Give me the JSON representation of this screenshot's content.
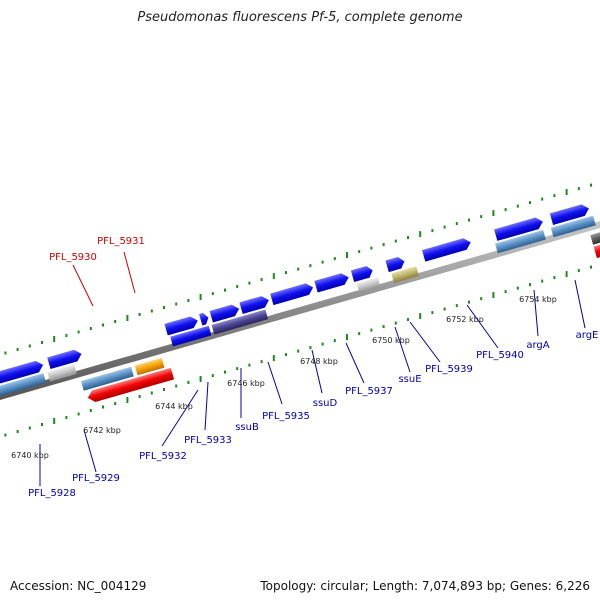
{
  "title": "Pseudomonas fluorescens Pf-5, complete genome",
  "footer": {
    "accession": "Accession: NC_004129",
    "topology": "Topology: circular; Length: 7,074,893 bp; Genes: 6,226"
  },
  "colors": {
    "backbone": "#8a8a8a",
    "highlight_label": "#d00000",
    "normal_label": "#0000aa",
    "tick": "#1a8a1a"
  },
  "scale_labels": [
    "6740 kbp",
    "6742 kbp",
    "6744 kbp",
    "6746 kbp",
    "6748 kbp",
    "6750 kbp",
    "6752 kbp",
    "6754 kbp"
  ],
  "gene_labels": [
    {
      "text": "PFL_5931",
      "highlight": true
    },
    {
      "text": "PFL_5930",
      "highlight": true
    },
    {
      "text": "PFL_5928",
      "highlight": false
    },
    {
      "text": "PFL_5929",
      "highlight": false
    },
    {
      "text": "PFL_5932",
      "highlight": false
    },
    {
      "text": "PFL_5933",
      "highlight": false
    },
    {
      "text": "ssuB",
      "highlight": false
    },
    {
      "text": "PFL_5935",
      "highlight": false
    },
    {
      "text": "ssuD",
      "highlight": false
    },
    {
      "text": "PFL_5937",
      "highlight": false
    },
    {
      "text": "ssuE",
      "highlight": false
    },
    {
      "text": "PFL_5939",
      "highlight": false
    },
    {
      "text": "PFL_5940",
      "highlight": false
    },
    {
      "text": "argA",
      "highlight": false
    },
    {
      "text": "argE",
      "highlight": false
    }
  ]
}
